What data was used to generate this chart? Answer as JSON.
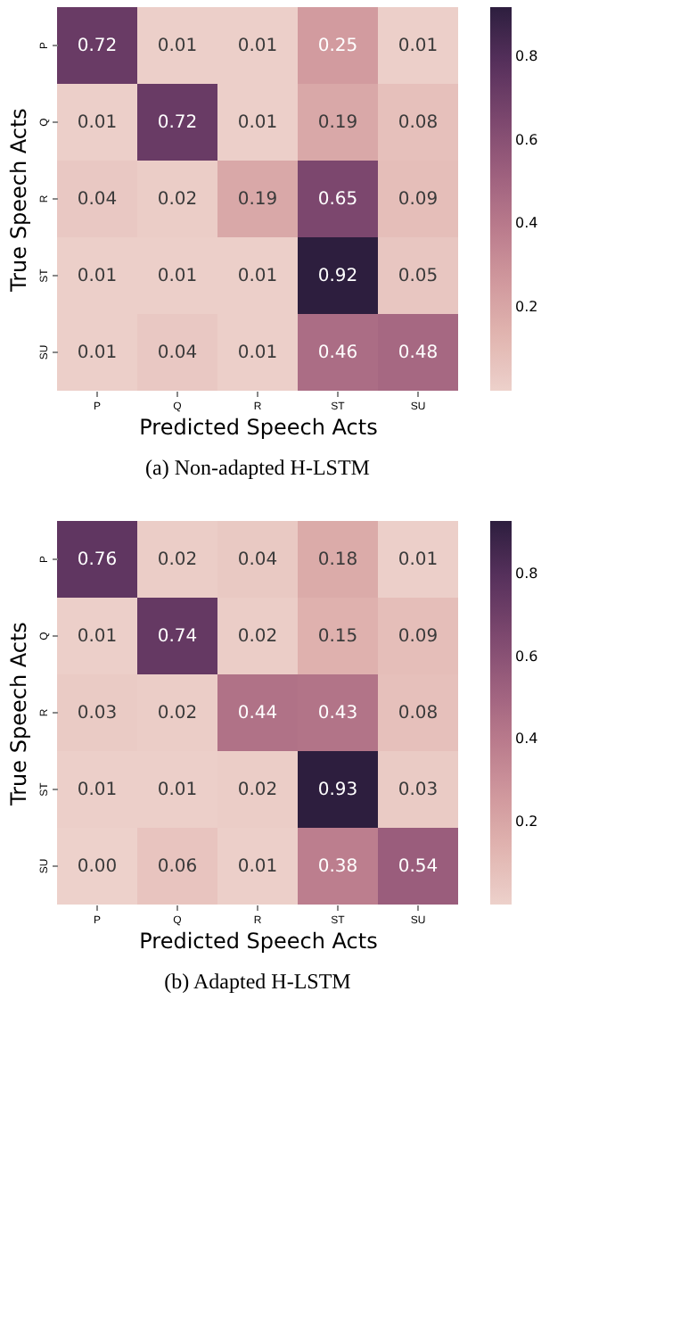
{
  "chart_data": [
    {
      "type": "heatmap",
      "title": "(a) Non-adapted H-LSTM",
      "xlabel": "Predicted Speech Acts",
      "ylabel": "True Speech Acts",
      "categories": [
        "P",
        "Q",
        "R",
        "ST",
        "SU"
      ],
      "y_categories": [
        "P",
        "Q",
        "R",
        "ST",
        "SU"
      ],
      "cells": [
        [
          0.72,
          0.01,
          0.01,
          0.25,
          0.01
        ],
        [
          0.01,
          0.72,
          0.01,
          0.19,
          0.08
        ],
        [
          0.04,
          0.02,
          0.19,
          0.65,
          0.09
        ],
        [
          0.01,
          0.01,
          0.01,
          0.92,
          0.05
        ],
        [
          0.01,
          0.04,
          0.01,
          0.46,
          0.48
        ]
      ],
      "cell_labels": [
        [
          "0.72",
          "0.01",
          "0.01",
          "0.25",
          "0.01"
        ],
        [
          "0.01",
          "0.72",
          "0.01",
          "0.19",
          "0.08"
        ],
        [
          "0.04",
          "0.02",
          "0.19",
          "0.65",
          "0.09"
        ],
        [
          "0.01",
          "0.01",
          "0.01",
          "0.92",
          "0.05"
        ],
        [
          "0.01",
          "0.04",
          "0.01",
          "0.46",
          "0.48"
        ]
      ],
      "clim": [
        0,
        0.92
      ],
      "cticks": [
        0.2,
        0.4,
        0.6,
        0.8
      ],
      "colors": [
        "#edd1cb",
        "#e1b5b0",
        "#d0989d",
        "#b97a8c",
        "#9c5f7d",
        "#7a466d",
        "#56305c",
        "#2d1e3e"
      ]
    },
    {
      "type": "heatmap",
      "title": "(b) Adapted H-LSTM",
      "xlabel": "Predicted Speech Acts",
      "ylabel": "True Speech Acts",
      "categories": [
        "P",
        "Q",
        "R",
        "ST",
        "SU"
      ],
      "y_categories": [
        "P",
        "Q",
        "R",
        "ST",
        "SU"
      ],
      "cells": [
        [
          0.76,
          0.02,
          0.04,
          0.18,
          0.01
        ],
        [
          0.01,
          0.74,
          0.02,
          0.15,
          0.09
        ],
        [
          0.03,
          0.02,
          0.44,
          0.43,
          0.08
        ],
        [
          0.01,
          0.01,
          0.02,
          0.93,
          0.03
        ],
        [
          0.0,
          0.06,
          0.01,
          0.38,
          0.54
        ]
      ],
      "cell_labels": [
        [
          "0.76",
          "0.02",
          "0.04",
          "0.18",
          "0.01"
        ],
        [
          "0.01",
          "0.74",
          "0.02",
          "0.15",
          "0.09"
        ],
        [
          "0.03",
          "0.02",
          "0.44",
          "0.43",
          "0.08"
        ],
        [
          "0.01",
          "0.01",
          "0.02",
          "0.93",
          "0.03"
        ],
        [
          "0.00",
          "0.06",
          "0.01",
          "0.38",
          "0.54"
        ]
      ],
      "clim": [
        0,
        0.93
      ],
      "cticks": [
        0.2,
        0.4,
        0.6,
        0.8
      ],
      "colors": [
        "#edd1cb",
        "#e1b5b0",
        "#d0989d",
        "#b97a8c",
        "#9c5f7d",
        "#7a466d",
        "#56305c",
        "#2d1e3e"
      ]
    }
  ]
}
